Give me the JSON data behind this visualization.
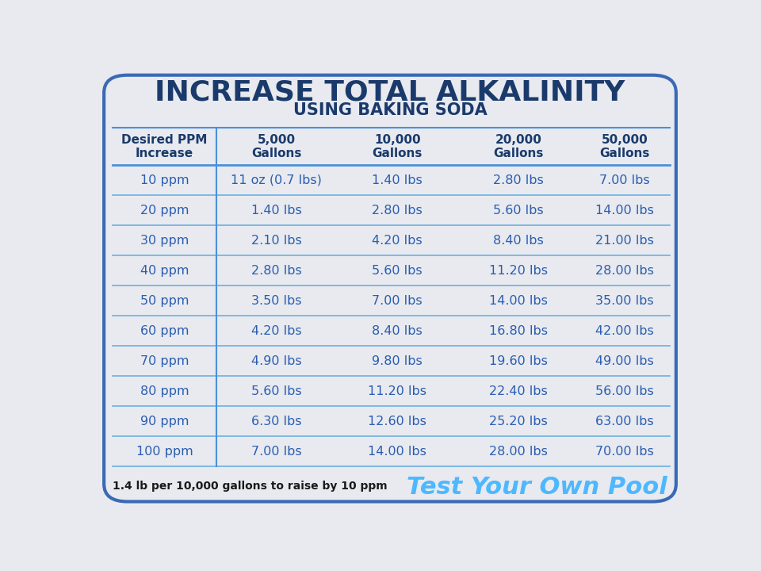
{
  "title_line1": "INCREASE TOTAL ALKALINITY",
  "title_line2": "USING BAKING SODA",
  "title_color": "#1a3a6b",
  "subtitle_color": "#1a3a6b",
  "bg_color": "#e8eaf0",
  "border_color": "#3a6ab5",
  "header_row": [
    "Desired PPM\nIncrease",
    "5,000\nGallons",
    "10,000\nGallons",
    "20,000\nGallons",
    "50,000\nGallons"
  ],
  "header_color": "#1a3a6b",
  "cell_text_color": "#2a5db0",
  "table_data": [
    [
      "10 ppm",
      "11 oz (0.7 lbs)",
      "1.40 lbs",
      "2.80 lbs",
      "7.00 lbs"
    ],
    [
      "20 ppm",
      "1.40 lbs",
      "2.80 lbs",
      "5.60 lbs",
      "14.00 lbs"
    ],
    [
      "30 ppm",
      "2.10 lbs",
      "4.20 lbs",
      "8.40 lbs",
      "21.00 lbs"
    ],
    [
      "40 ppm",
      "2.80 lbs",
      "5.60 lbs",
      "11.20 lbs",
      "28.00 lbs"
    ],
    [
      "50 ppm",
      "3.50 lbs",
      "7.00 lbs",
      "14.00 lbs",
      "35.00 lbs"
    ],
    [
      "60 ppm",
      "4.20 lbs",
      "8.40 lbs",
      "16.80 lbs",
      "42.00 lbs"
    ],
    [
      "70 ppm",
      "4.90 lbs",
      "9.80 lbs",
      "19.60 lbs",
      "49.00 lbs"
    ],
    [
      "80 ppm",
      "5.60 lbs",
      "11.20 lbs",
      "22.40 lbs",
      "56.00 lbs"
    ],
    [
      "90 ppm",
      "6.30 lbs",
      "12.60 lbs",
      "25.20 lbs",
      "63.00 lbs"
    ],
    [
      "100 ppm",
      "7.00 lbs",
      "14.00 lbs",
      "28.00 lbs",
      "70.00 lbs"
    ]
  ],
  "footer_left": "1.4 lb per 10,000 gallons to raise by 10 ppm",
  "footer_right": "Test Your Own Pool",
  "footer_right_color": "#4db8ff",
  "divider_color": "#4a90d9",
  "col_divider_color": "#4a90d9",
  "row_line_color": "#6ab0e0"
}
